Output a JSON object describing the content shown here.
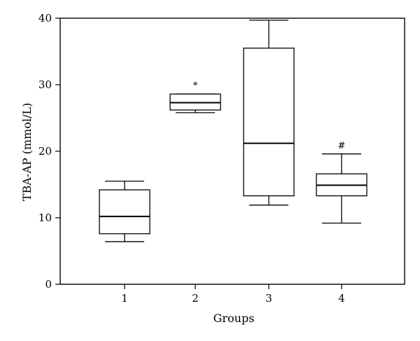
{
  "chart_data": {
    "type": "box",
    "title": "",
    "xlabel": "Groups",
    "ylabel": "TBA-AP (mmol/L)",
    "ylim": [
      0,
      40
    ],
    "yticks": [
      0,
      10,
      20,
      30,
      40
    ],
    "categories": [
      "1",
      "2",
      "3",
      "4"
    ],
    "boxes": [
      {
        "group": "1",
        "whisker_low": 6.4,
        "q1": 7.6,
        "median": 10.2,
        "q3": 14.2,
        "whisker_high": 15.5,
        "annotation": ""
      },
      {
        "group": "2",
        "whisker_low": 25.8,
        "q1": 26.2,
        "median": 27.3,
        "q3": 28.6,
        "whisker_high": 28.6,
        "annotation": "*"
      },
      {
        "group": "3",
        "whisker_low": 11.9,
        "q1": 13.3,
        "median": 21.2,
        "q3": 35.5,
        "whisker_high": 39.7,
        "annotation": ""
      },
      {
        "group": "4",
        "whisker_low": 9.2,
        "q1": 13.3,
        "median": 14.9,
        "q3": 16.6,
        "whisker_high": 19.6,
        "annotation": "#"
      }
    ],
    "grid": false,
    "legend": "none"
  }
}
